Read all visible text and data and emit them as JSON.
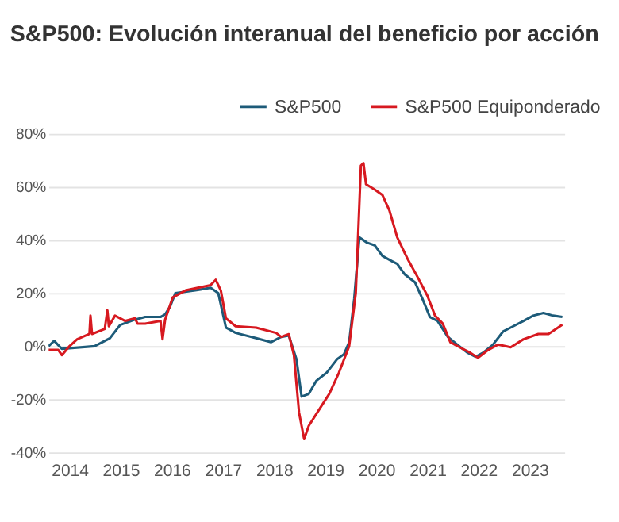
{
  "chart_data": {
    "type": "line",
    "title": "S&P500: Evolución interanual del beneficio por acción",
    "xlim": [
      2013.59,
      2023.68
    ],
    "xticks": [
      2014,
      2015,
      2016,
      2017,
      2018,
      2019,
      2020,
      2021,
      2022,
      2023
    ],
    "ylim": [
      -40,
      80
    ],
    "yticks": [
      {
        "value": -40,
        "label": "-40%"
      },
      {
        "value": -20,
        "label": "-20%"
      },
      {
        "value": 0,
        "label": "0%"
      },
      {
        "value": 20,
        "label": "20%"
      },
      {
        "value": 40,
        "label": "40%"
      },
      {
        "value": 60,
        "label": "60%"
      },
      {
        "value": 80,
        "label": "80%"
      }
    ],
    "grid": "y",
    "legend": "top right",
    "marker": "none",
    "line_style": "solid",
    "series": [
      {
        "name": "S&P500",
        "color": "#1d5b79",
        "x": [
          2013.59,
          2013.7,
          2013.85,
          2014.49,
          2014.79,
          2014.99,
          2015.28,
          2015.48,
          2015.78,
          2015.87,
          2015.97,
          2016.07,
          2016.46,
          2016.76,
          2016.91,
          2017.06,
          2017.25,
          2017.65,
          2017.94,
          2018.14,
          2018.29,
          2018.44,
          2018.54,
          2018.68,
          2018.83,
          2019.03,
          2019.23,
          2019.37,
          2019.47,
          2019.57,
          2019.67,
          2019.82,
          2019.97,
          2020.12,
          2020.31,
          2020.41,
          2020.56,
          2020.76,
          2020.9,
          2021.05,
          2021.2,
          2021.4,
          2021.59,
          2021.79,
          2021.94,
          2022.09,
          2022.28,
          2022.48,
          2022.68,
          2022.88,
          2023.07,
          2023.27,
          2023.46,
          2023.64
        ],
        "values": [
          0,
          2,
          -1,
          0,
          3,
          8,
          10,
          11,
          11,
          12,
          15,
          20,
          21,
          22,
          20,
          7,
          5,
          3,
          1.5,
          3.5,
          4,
          -5,
          -19,
          -18,
          -13,
          -10,
          -5,
          -3,
          1.5,
          18,
          41,
          39,
          38,
          34,
          32,
          31,
          27,
          24,
          18,
          11,
          9.5,
          3.5,
          0.5,
          -2.5,
          -4,
          -2.5,
          0.5,
          5.5,
          7.5,
          9.5,
          11.5,
          12.5,
          11.5,
          11
        ]
      },
      {
        "name": "S&P500 Equiponderado",
        "color": "#d71920",
        "x": [
          2013.59,
          2013.78,
          2013.85,
          2014.0,
          2014.15,
          2014.39,
          2014.41,
          2014.44,
          2014.69,
          2014.74,
          2014.77,
          2014.89,
          2015.09,
          2015.28,
          2015.33,
          2015.48,
          2015.78,
          2015.82,
          2015.87,
          2016.02,
          2016.27,
          2016.76,
          2016.86,
          2016.96,
          2017.06,
          2017.25,
          2017.65,
          2018.04,
          2018.14,
          2018.29,
          2018.39,
          2018.49,
          2018.59,
          2018.68,
          2018.88,
          2019.08,
          2019.27,
          2019.47,
          2019.6,
          2019.7,
          2019.75,
          2019.8,
          2019.97,
          2020.12,
          2020.26,
          2020.41,
          2020.61,
          2020.81,
          2021.0,
          2021.15,
          2021.3,
          2021.45,
          2021.64,
          2021.84,
          2021.99,
          2022.19,
          2022.38,
          2022.63,
          2022.88,
          2023.17,
          2023.37,
          2023.64
        ],
        "values": [
          -1.4,
          -1.4,
          -3.4,
          0,
          2.6,
          4.6,
          11.5,
          4.6,
          6.5,
          13.5,
          7.5,
          11.5,
          9.5,
          10.5,
          8.5,
          8.5,
          9.5,
          2.6,
          10,
          18.4,
          21,
          23,
          25,
          21,
          10.5,
          7.5,
          7,
          5,
          3.5,
          4.5,
          -3.4,
          -25,
          -35,
          -30,
          -24,
          -18,
          -10,
          0,
          20,
          68,
          69,
          61,
          59,
          57,
          51,
          41,
          33,
          26,
          19,
          11.5,
          8.5,
          1.5,
          -0.5,
          -2.5,
          -4.4,
          -1.4,
          0.6,
          -0.4,
          2.6,
          4.6,
          4.6,
          8.1
        ]
      }
    ]
  }
}
